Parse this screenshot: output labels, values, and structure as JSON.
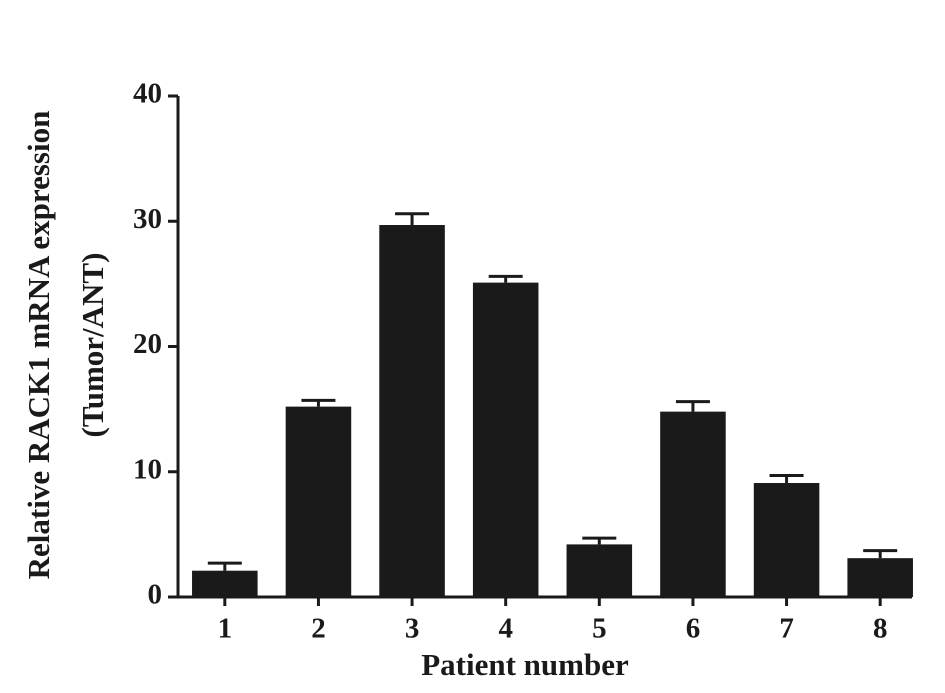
{
  "chart_data": {
    "type": "bar",
    "y_label": [
      "Relative RACK1 mRNA expression",
      "(Tumor/ANT)"
    ],
    "x_label": "Patient number",
    "categories": [
      "1",
      "2",
      "3",
      "4",
      "5",
      "6",
      "7",
      "8"
    ],
    "values": [
      2.1,
      15.2,
      29.7,
      25.1,
      4.2,
      14.8,
      9.1,
      3.1
    ],
    "errors": [
      0.6,
      0.5,
      0.9,
      0.5,
      0.5,
      0.8,
      0.6,
      0.6
    ],
    "color": "#1a1a1a",
    "ylim": [
      0,
      40
    ],
    "yticks": [
      0,
      10,
      20,
      30,
      40
    ],
    "grid": false
  }
}
